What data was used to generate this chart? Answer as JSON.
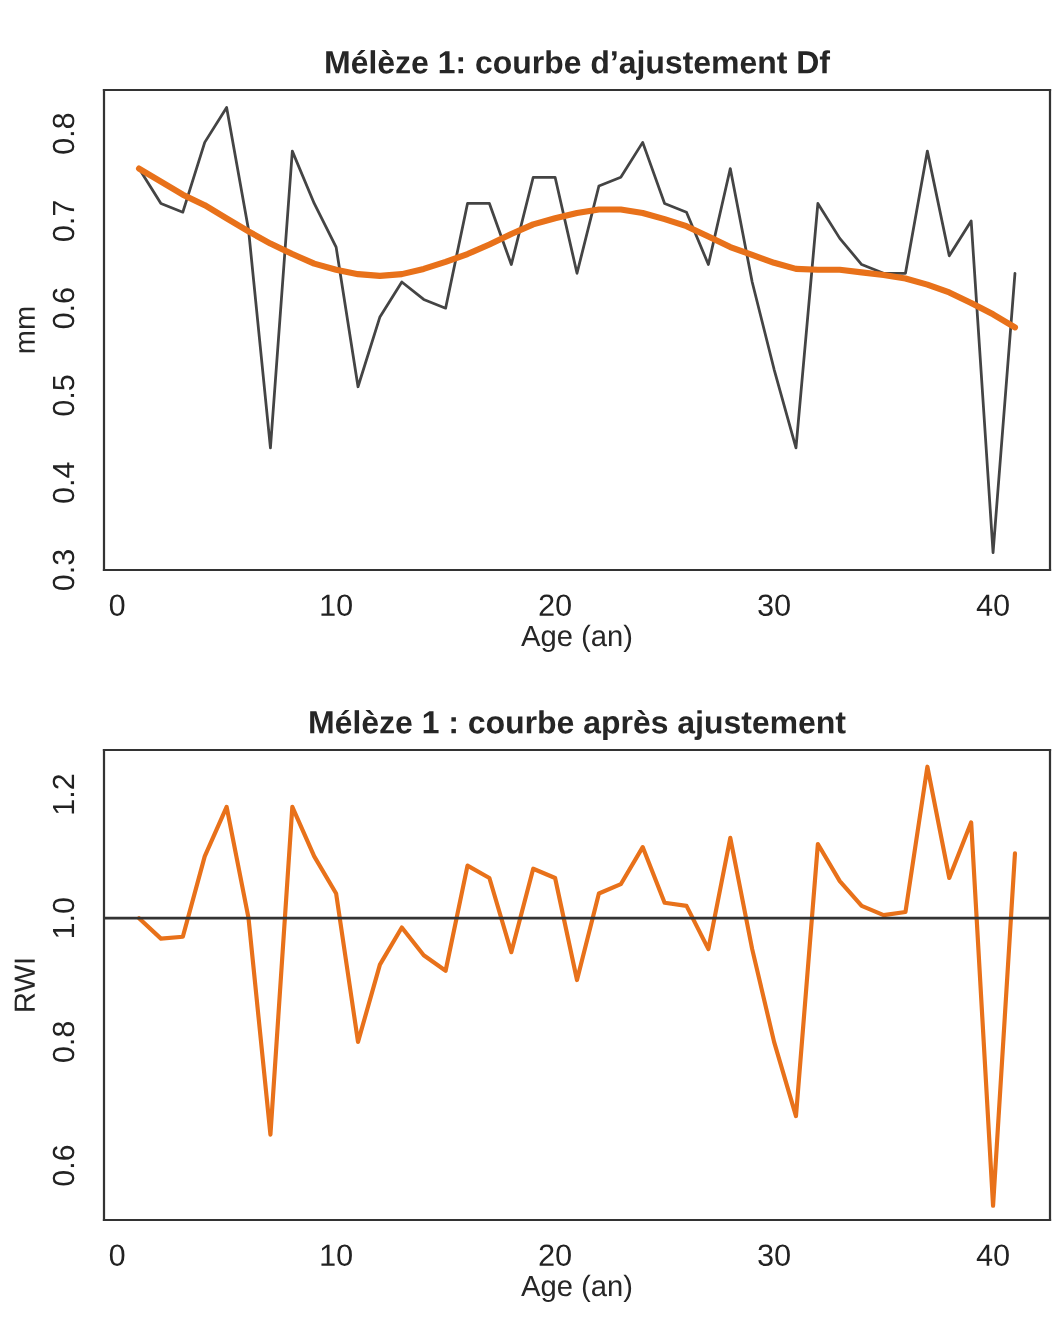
{
  "chart_data": [
    {
      "type": "line",
      "title": "Mélèze 1: courbe d’ajustement Df",
      "xlabel": "Age (an)",
      "ylabel": "mm",
      "grid": false,
      "legend": false,
      "x": [
        1,
        2,
        3,
        4,
        5,
        6,
        7,
        8,
        9,
        10,
        11,
        12,
        13,
        14,
        15,
        16,
        17,
        18,
        19,
        20,
        21,
        22,
        23,
        24,
        25,
        26,
        27,
        28,
        29,
        30,
        31,
        32,
        33,
        34,
        35,
        36,
        37,
        38,
        39,
        40,
        41
      ],
      "xlim": [
        -0.6,
        42.6
      ],
      "xticks": [
        0,
        10,
        20,
        30,
        40
      ],
      "ylim": [
        0.3,
        0.85
      ],
      "yticks": [
        0.3,
        0.4,
        0.5,
        0.6,
        0.7,
        0.8
      ],
      "series": [
        {
          "color": "#444444",
          "values": [
            0.76,
            0.72,
            0.71,
            0.79,
            0.83,
            0.69,
            0.44,
            0.78,
            0.72,
            0.67,
            0.51,
            0.59,
            0.63,
            0.61,
            0.6,
            0.72,
            0.72,
            0.65,
            0.75,
            0.75,
            0.64,
            0.74,
            0.75,
            0.79,
            0.72,
            0.71,
            0.65,
            0.76,
            0.63,
            0.53,
            0.44,
            0.72,
            0.68,
            0.65,
            0.64,
            0.64,
            0.78,
            0.66,
            0.7,
            0.32,
            0.64
          ]
        },
        {
          "color": "#e8711a",
          "values": [
            0.76,
            0.745,
            0.73,
            0.718,
            0.703,
            0.688,
            0.674,
            0.662,
            0.651,
            0.644,
            0.639,
            0.637,
            0.639,
            0.645,
            0.653,
            0.662,
            0.673,
            0.685,
            0.696,
            0.703,
            0.709,
            0.713,
            0.713,
            0.709,
            0.702,
            0.694,
            0.682,
            0.67,
            0.661,
            0.652,
            0.645,
            0.644,
            0.644,
            0.641,
            0.638,
            0.634,
            0.627,
            0.618,
            0.606,
            0.593,
            0.578
          ]
        }
      ]
    },
    {
      "type": "line",
      "title": "Mélèze 1 : courbe après ajustement",
      "xlabel": "Age (an)",
      "ylabel": "RWI",
      "grid": false,
      "legend": false,
      "x": [
        1,
        2,
        3,
        4,
        5,
        6,
        7,
        8,
        9,
        10,
        11,
        12,
        13,
        14,
        15,
        16,
        17,
        18,
        19,
        20,
        21,
        22,
        23,
        24,
        25,
        26,
        27,
        28,
        29,
        30,
        31,
        32,
        33,
        34,
        35,
        36,
        37,
        38,
        39,
        40,
        41
      ],
      "xlim": [
        -0.6,
        42.6
      ],
      "xticks": [
        0,
        10,
        20,
        30,
        40
      ],
      "ylim": [
        0.512,
        1.272
      ],
      "yticks": [
        0.6,
        0.8,
        {
          "value": 1,
          "label": "1.0"
        },
        1.2
      ],
      "ref_lines": [
        {
          "axis": "y",
          "value": 1.0,
          "color": "#333333"
        }
      ],
      "series": [
        {
          "color": "#e8711a",
          "values": [
            1.0,
            0.967,
            0.97,
            1.1,
            1.18,
            1.0,
            0.65,
            1.18,
            1.1,
            1.04,
            0.8,
            0.925,
            0.985,
            0.94,
            0.915,
            1.085,
            1.065,
            0.945,
            1.08,
            1.065,
            0.9,
            1.04,
            1.055,
            1.115,
            1.025,
            1.02,
            0.95,
            1.13,
            0.95,
            0.8,
            0.68,
            1.12,
            1.06,
            1.02,
            1.005,
            1.01,
            1.245,
            1.065,
            1.155,
            0.535,
            1.105
          ]
        }
      ]
    }
  ]
}
